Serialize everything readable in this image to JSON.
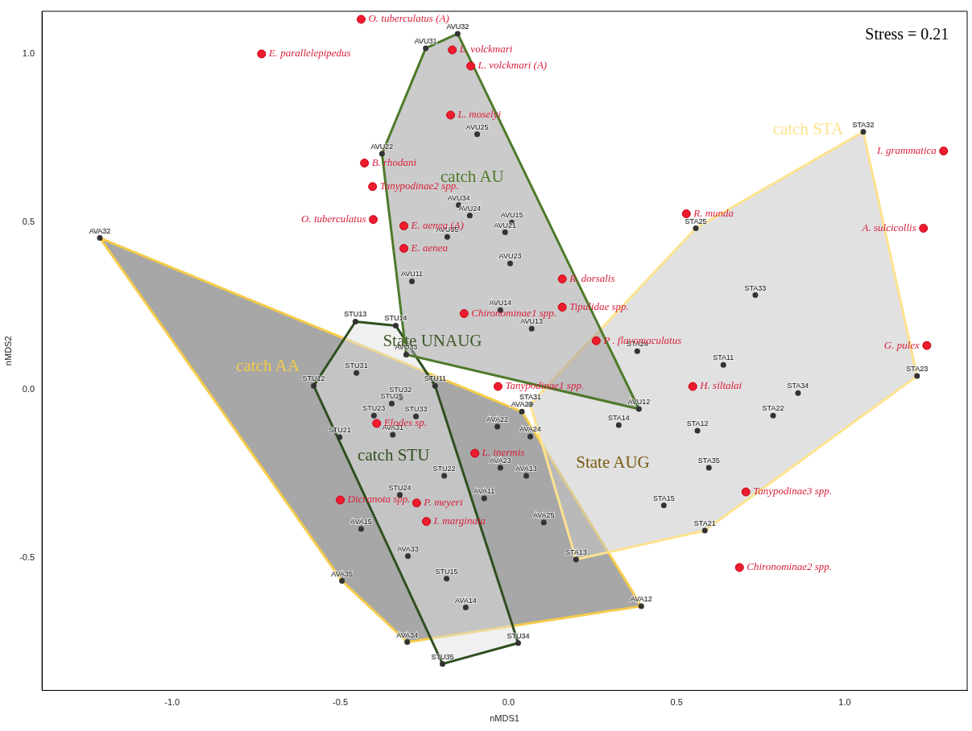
{
  "chart_data": {
    "type": "scatter",
    "xlabel": "nMDS1",
    "ylabel": "nMDS2",
    "xlim": [
      -1.387,
      1.364
    ],
    "ylim": [
      -0.895,
      1.127
    ],
    "xticks": [
      {
        "value": -1,
        "label": "-1.0"
      },
      {
        "value": -0.5,
        "label": "-0.5"
      },
      {
        "value": 0,
        "label": "0.0"
      },
      {
        "value": 0.5,
        "label": "0.5"
      },
      {
        "value": 1,
        "label": "1.0"
      }
    ],
    "yticks": [
      {
        "value": -0.5,
        "label": "-0.5"
      },
      {
        "value": 0,
        "label": "0.0"
      },
      {
        "value": 0.5,
        "label": "0.5"
      },
      {
        "value": 1,
        "label": "1.0"
      }
    ],
    "grid": false,
    "legend": false,
    "marker": "circle",
    "series": [
      {
        "type": "area",
        "name": "catch AA",
        "marker": "none",
        "color": "#f5cc4a",
        "x": [
          -1.215,
          0.04,
          0.395,
          -0.301,
          -0.495,
          -1.215
        ],
        "values": [
          0.452,
          -0.065,
          -0.644,
          -0.751,
          -0.569,
          0.452
        ]
      },
      {
        "type": "area",
        "name": "catch STA",
        "marker": "none",
        "color": "#fde38f",
        "x": [
          0.065,
          0.557,
          1.055,
          1.215,
          0.584,
          0.201,
          0.065
        ],
        "values": [
          -0.043,
          0.481,
          0.768,
          0.041,
          -0.419,
          -0.505,
          -0.043
        ]
      },
      {
        "type": "area",
        "name": "catch STU",
        "marker": "none",
        "color": "#2f4f1f",
        "x": [
          -0.455,
          -0.335,
          -0.218,
          0.029,
          -0.196,
          -0.579,
          -0.455
        ],
        "values": [
          0.203,
          0.191,
          0.012,
          -0.754,
          -0.816,
          0.012,
          0.203
        ]
      },
      {
        "type": "area",
        "name": "catch AU",
        "marker": "none",
        "color": "#4e7a2a",
        "x": [
          -0.151,
          -0.246,
          -0.376,
          -0.304,
          0.388,
          -0.151
        ],
        "values": [
          1.06,
          1.017,
          0.703,
          0.105,
          -0.057,
          1.06
        ]
      },
      {
        "type": "scatter",
        "marker": "circle",
        "color": "#333333",
        "x": [
          -0.151,
          -0.246,
          -0.093,
          -0.376,
          -0.148,
          -0.115,
          0.01,
          -0.01,
          -0.182,
          0.005,
          -0.287,
          -0.024,
          0.069,
          -0.304,
          0.388,
          -0.455,
          -0.335,
          -0.218,
          0.029,
          -0.196,
          -0.579,
          -0.452,
          -0.321,
          -0.347,
          -0.4,
          -0.275,
          -0.502,
          -0.191,
          -0.323,
          -0.184,
          -1.215,
          0.04,
          0.395,
          -0.301,
          -0.495,
          -0.344,
          -0.299,
          -0.127,
          -0.033,
          0.065,
          -0.024,
          0.053,
          -0.072,
          0.105,
          -0.438,
          0.065,
          0.557,
          1.055,
          1.215,
          0.584,
          0.201,
          0.734,
          0.383,
          0.639,
          0.861,
          0.787,
          0.562,
          0.596,
          0.462,
          0.328
        ],
        "values": [
          1.06,
          1.017,
          0.761,
          0.703,
          0.55,
          0.519,
          0.498,
          0.469,
          0.455,
          0.376,
          0.323,
          0.237,
          0.182,
          0.105,
          -0.057,
          0.203,
          0.191,
          0.012,
          -0.754,
          -0.816,
          0.012,
          0.05,
          -0.022,
          -0.041,
          -0.077,
          -0.079,
          -0.141,
          -0.256,
          -0.313,
          -0.562,
          0.452,
          -0.065,
          -0.644,
          -0.751,
          -0.569,
          -0.134,
          -0.495,
          -0.648,
          -0.11,
          -0.139,
          -0.232,
          -0.256,
          -0.323,
          -0.395,
          -0.414,
          -0.043,
          0.481,
          0.768,
          0.041,
          -0.419,
          -0.505,
          0.282,
          0.115,
          0.074,
          -0.01,
          -0.077,
          -0.122,
          -0.232,
          -0.344,
          -0.105
        ],
        "value_labels": [
          "AVU32",
          "AVU31",
          "AVU25",
          "AVU22",
          "AVU34",
          "AVU24",
          "AVU15",
          "AVU21",
          "AVU35",
          "AVU23",
          "AVU11",
          "AVU14",
          "AVU13",
          "AVU33",
          "AVU12",
          "STU13",
          "STU14",
          "STU11",
          "STU34",
          "STU35",
          "STU12",
          "STU31",
          "STU32",
          "STU25",
          "STU23",
          "STU33",
          "STU21",
          "STU22",
          "STU24",
          "STU15",
          "AVA32",
          "AVA21",
          "AVA12",
          "AVA34",
          "AVA35",
          "AVA31",
          "AVA33",
          "AVA14",
          "AVA22",
          "AVA24",
          "AVA23",
          "AVA13",
          "AVA11",
          "AVA25",
          "AVA15",
          "STA31",
          "STA25",
          "STA32",
          "STA23",
          "STA21",
          "STA13",
          "STA33",
          "STA24",
          "STA11",
          "STA34",
          "STA22",
          "STA12",
          "STA35",
          "STA15",
          "STA14"
        ]
      },
      {
        "type": "scatter",
        "color": "#ee1c2e",
        "x": [
          -0.438,
          -0.734,
          -0.167,
          -0.112,
          -0.172,
          -0.428,
          -0.404,
          -0.402,
          -0.311,
          -0.311,
          0.16,
          0.16,
          -0.132,
          0.261,
          -0.031,
          0.529,
          1.294,
          1.234,
          1.244,
          0.548,
          0.706,
          0.687,
          -0.392,
          -0.1,
          -0.5,
          -0.273,
          -0.244
        ],
        "values": [
          1.103,
          1.0,
          1.012,
          0.964,
          0.818,
          0.675,
          0.605,
          0.507,
          0.488,
          0.421,
          0.33,
          0.246,
          0.227,
          0.146,
          0.01,
          0.524,
          0.711,
          0.481,
          0.132,
          0.01,
          -0.304,
          -0.529,
          -0.1,
          -0.189,
          -0.328,
          -0.337,
          -0.392
        ],
        "value_labels": [
          "O. tuberculatus (A)",
          "E. parallelepipedus",
          "L. volckmari",
          "L. volckmari (A)",
          "L. moselyi",
          "B. rhodani",
          "Tanypodinae2 spp.",
          "O. tuberculatus",
          "E. aenea (A)",
          "E. aenea",
          "R. dorsalis",
          "Tipulidae spp.",
          "Chironominae1 spp.",
          "P . flavomaculatus",
          "Tanypodinae1 spp.",
          "R. munda",
          "I. grammatica",
          "A. sulcicollis",
          "G. pulex",
          "H. siltalai",
          "Tanypodinae3 spp.",
          "Chironominae2 spp.",
          "Elodes sp.",
          "L. inermis",
          "Dicranota spp.",
          "P. meyeri",
          "I. marginata"
        ]
      }
    ],
    "annotations": [
      "Stress = 0.21",
      "State UNAUG",
      "State AUG"
    ]
  }
}
